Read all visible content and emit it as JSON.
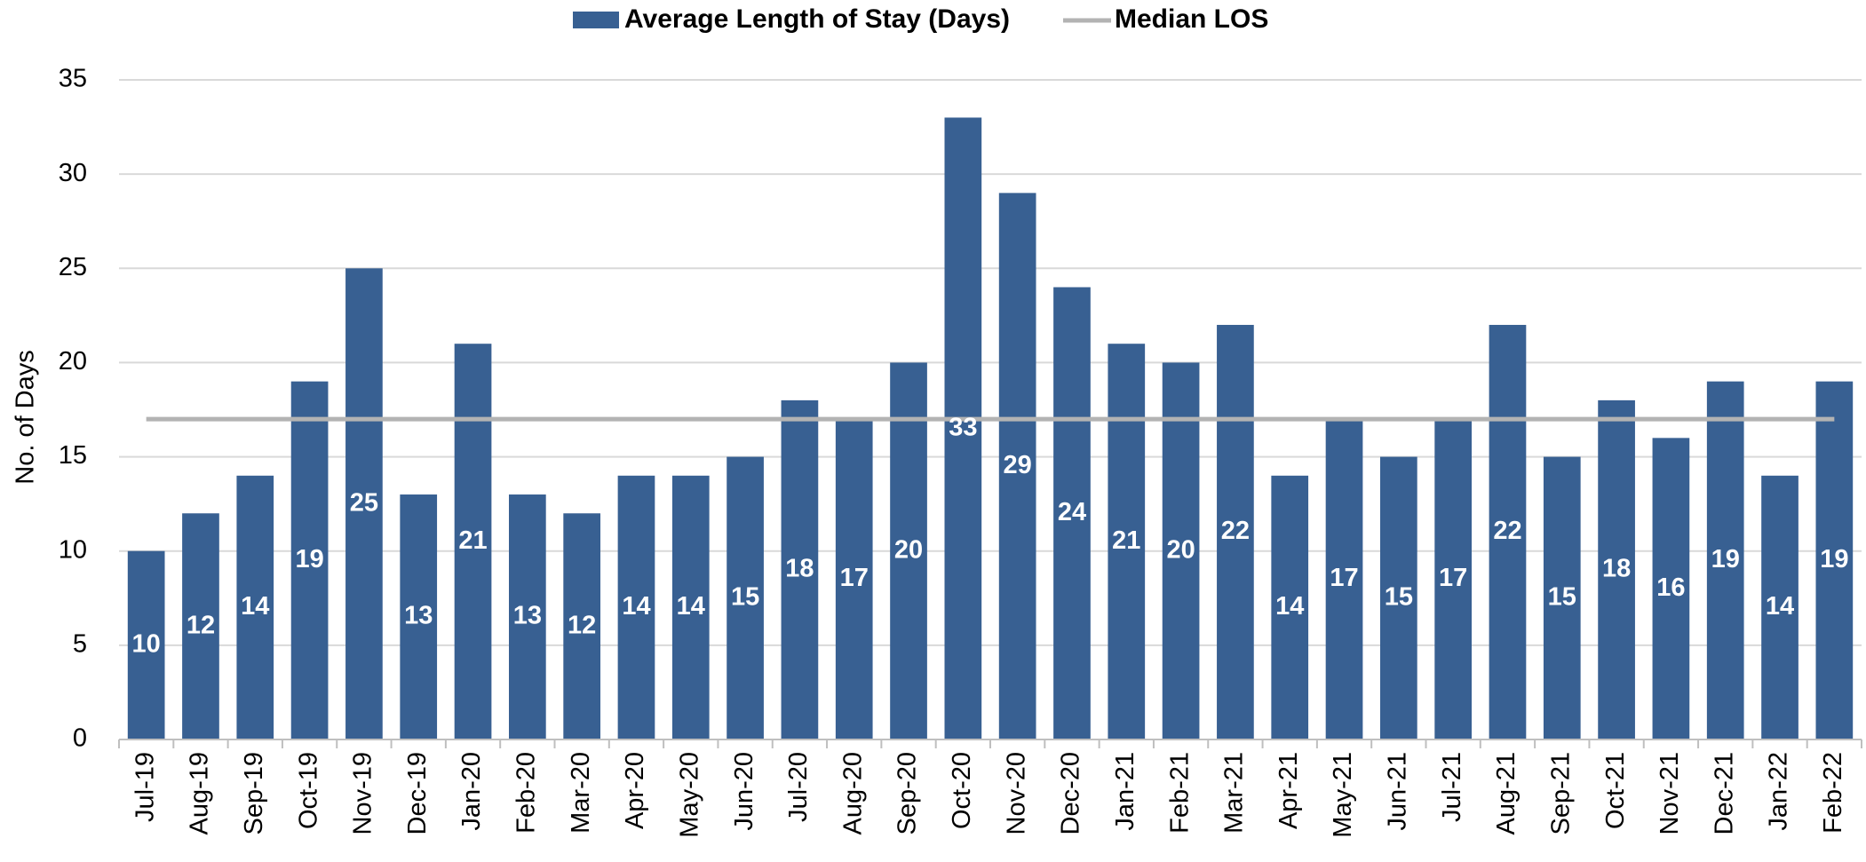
{
  "chart_data": {
    "type": "bar",
    "y_label": "No. of Days",
    "categories": [
      "Jul-19",
      "Aug-19",
      "Sep-19",
      "Oct-19",
      "Nov-19",
      "Dec-19",
      "Jan-20",
      "Feb-20",
      "Mar-20",
      "Apr-20",
      "May-20",
      "Jun-20",
      "Jul-20",
      "Aug-20",
      "Sep-20",
      "Oct-20",
      "Nov-20",
      "Dec-20",
      "Jan-21",
      "Feb-21",
      "Mar-21",
      "Apr-21",
      "May-21",
      "Jun-21",
      "Jul-21",
      "Aug-21",
      "Sep-21",
      "Oct-21",
      "Nov-21",
      "Dec-21",
      "Jan-22",
      "Feb-22"
    ],
    "series": [
      {
        "name": "Average Length of Stay (Days)",
        "type": "bar",
        "color": "#386092",
        "values": [
          10,
          12,
          14,
          19,
          25,
          13,
          21,
          13,
          12,
          14,
          14,
          15,
          18,
          17,
          20,
          33,
          29,
          24,
          21,
          20,
          22,
          14,
          17,
          15,
          17,
          22,
          15,
          18,
          16,
          19,
          14,
          19
        ]
      },
      {
        "name": "Median LOS",
        "type": "line",
        "color": "#b3b3b3",
        "values": [
          17,
          17,
          17,
          17,
          17,
          17,
          17,
          17,
          17,
          17,
          17,
          17,
          17,
          17,
          17,
          17,
          17,
          17,
          17,
          17,
          17,
          17,
          17,
          17,
          17,
          17,
          17,
          17,
          17,
          17,
          17,
          17
        ]
      }
    ],
    "ylim": [
      0,
      35
    ],
    "yticks": [
      0,
      5,
      10,
      15,
      20,
      25,
      30,
      35
    ],
    "grid": true,
    "legend": "top"
  }
}
